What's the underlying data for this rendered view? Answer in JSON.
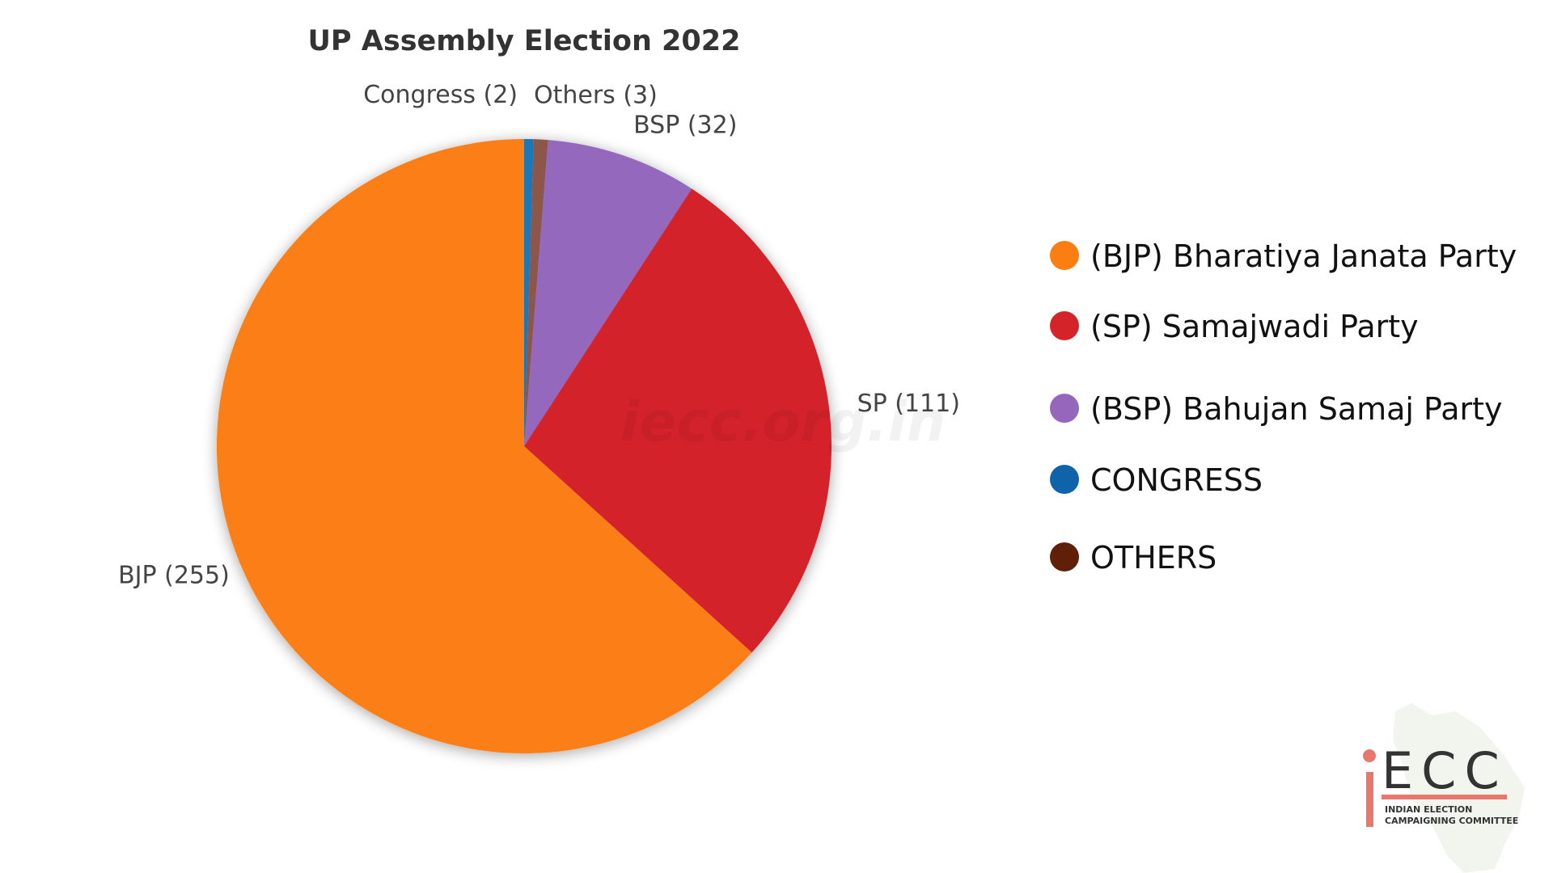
{
  "chart_data": {
    "type": "pie",
    "title": "UP Assembly Election 2022",
    "categories": [
      "BJP",
      "SP",
      "BSP",
      "Congress",
      "Others"
    ],
    "values": [
      255,
      111,
      32,
      2,
      3
    ],
    "slice_labels": [
      "BJP (255)",
      "SP (111)",
      "BSP (32)",
      "Congress (2)",
      "Others (3)"
    ],
    "colors": [
      "#FB7E12",
      "#D42429",
      "#9467BD",
      "#1F77B4",
      "#8C564B"
    ],
    "start_angle_deg": 0,
    "direction": "clockwise-from-top-order: Congress, Others, BSP, SP, BJP",
    "legend": {
      "placement": "right",
      "entries": [
        {
          "label": "(BJP) Bharatiya Janata Party",
          "color": "#FB7E12"
        },
        {
          "label": "(SP) Samajwadi Party",
          "color": "#D42429"
        },
        {
          "label": "(BSP) Bahujan Samaj Party",
          "color": "#9467BD"
        },
        {
          "label": " CONGRESS",
          "color": "#0F63A8"
        },
        {
          "label": "OTHERS",
          "color": "#5F1F09"
        }
      ]
    }
  },
  "watermark": "iecc.org.in",
  "logo": {
    "acronym": "ECC",
    "line1": "INDIAN ELECTION",
    "line2": "CAMPAIGNING COMMITTEE",
    "accent": "#E8776E"
  }
}
